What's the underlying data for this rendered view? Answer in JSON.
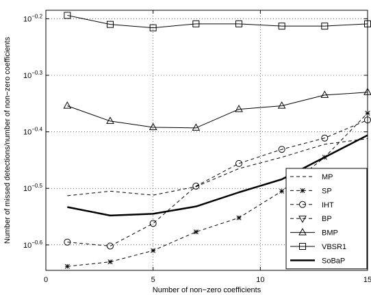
{
  "chart_data": {
    "type": "line",
    "title": "",
    "xlabel": "Number of non−zero coefficients",
    "ylabel": "Number of missed detections/number of non−zero coefficients",
    "xlim": [
      0,
      15
    ],
    "ylim_log10": [
      -0.645,
      -0.185
    ],
    "y_scale": "log",
    "grid": true,
    "legend_position": "bottom-right",
    "x_ticks": [
      0,
      5,
      10,
      15
    ],
    "x_tick_labels": [
      "0",
      "5",
      "10",
      "15"
    ],
    "y_ticks": [
      {
        "base": "10",
        "exp": "−0.2",
        "value": -0.2
      },
      {
        "base": "10",
        "exp": "−0.3",
        "value": -0.3
      },
      {
        "base": "10",
        "exp": "−0.4",
        "value": -0.4
      },
      {
        "base": "10",
        "exp": "−0.5",
        "value": -0.5
      },
      {
        "base": "10",
        "exp": "−0.6",
        "value": -0.6
      }
    ],
    "x": [
      1,
      3,
      5,
      7,
      9,
      11,
      13,
      15
    ],
    "series": [
      {
        "name": "MP",
        "style": "dashed",
        "marker": "none",
        "width": 1,
        "log10_values": [
          -0.513,
          -0.505,
          -0.512,
          -0.497,
          -0.465,
          -0.445,
          -0.422,
          -0.412
        ]
      },
      {
        "name": "SP",
        "style": "dashed",
        "marker": "star",
        "width": 1,
        "log10_values": [
          -0.638,
          -0.63,
          -0.61,
          -0.577,
          -0.552,
          -0.505,
          -0.445,
          -0.367
        ]
      },
      {
        "name": "IHT",
        "style": "dashed",
        "marker": "circle",
        "width": 1,
        "log10_values": [
          -0.595,
          -0.602,
          -0.562,
          -0.496,
          -0.456,
          -0.431,
          -0.411,
          -0.379
        ]
      },
      {
        "name": "BP",
        "style": "dashed",
        "marker": "triangle-down",
        "width": 1,
        "log10_values": [],
        "legend_only": true
      },
      {
        "name": "BMP",
        "style": "solid",
        "marker": "triangle-up",
        "width": 1,
        "log10_values": [
          -0.354,
          -0.381,
          -0.392,
          -0.393,
          -0.36,
          -0.354,
          -0.335,
          -0.33
        ]
      },
      {
        "name": "VBSR1",
        "style": "solid",
        "marker": "square",
        "width": 1,
        "log10_values": [
          -0.194,
          -0.21,
          -0.216,
          -0.209,
          -0.209,
          -0.213,
          -0.213,
          -0.209
        ]
      },
      {
        "name": "SoBaP",
        "style": "solid",
        "marker": "none",
        "width": 2.5,
        "log10_values": [
          -0.533,
          -0.548,
          -0.545,
          -0.532,
          -0.507,
          -0.484,
          -0.445,
          -0.406
        ]
      }
    ]
  }
}
